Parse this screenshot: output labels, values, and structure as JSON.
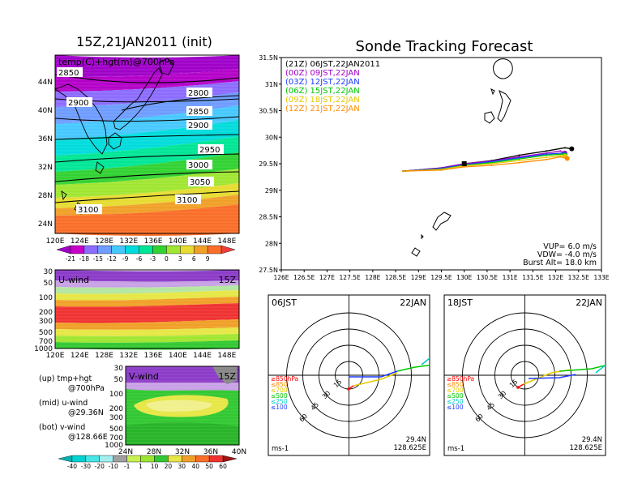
{
  "left": {
    "title": "15Z,21JAN2011 (init)",
    "top_panel": {
      "label": "temp(C)+hgt(m)@700hPa",
      "lat_ticks": [
        "44N",
        "40N",
        "36N",
        "32N",
        "28N",
        "24N"
      ],
      "lon_ticks": [
        "120E",
        "124E",
        "128E",
        "132E",
        "136E",
        "140E",
        "144E",
        "148E"
      ],
      "contours": [
        "2800",
        "2850",
        "2900",
        "2900",
        "2950",
        "3000",
        "3050",
        "3100",
        "3100",
        "2850"
      ],
      "colorbar": [
        "-21",
        "-18",
        "-15",
        "-12",
        "-9",
        "-6",
        "-3",
        "0",
        "3",
        "6",
        "9"
      ],
      "colors": [
        "#a000c8",
        "#c800c8",
        "#8c6cff",
        "#6e9cff",
        "#46c8ff",
        "#00dcdc",
        "#00e696",
        "#32d232",
        "#a0e632",
        "#e6dc32",
        "#f0a028",
        "#fa6e28",
        "#f03c3c"
      ]
    },
    "mid_panel": {
      "label": "U-wind",
      "time": "15Z",
      "p_ticks": [
        "30",
        "50",
        "100",
        "200",
        "300",
        "500",
        "700",
        "1000"
      ],
      "lon_ticks": [
        "120E",
        "124E",
        "128E",
        "132E",
        "136E",
        "140E",
        "144E",
        "148E"
      ]
    },
    "bot_panel": {
      "label": "V-wind",
      "time": "15Z",
      "p_ticks": [
        "30",
        "50",
        "100",
        "200",
        "300",
        "500",
        "700",
        "1000"
      ],
      "lat_ticks": [
        "24N",
        "28N",
        "32N",
        "36N",
        "40N"
      ],
      "colorbar": [
        "-40",
        "-30",
        "-20",
        "-10",
        "-1",
        "1",
        "10",
        "20",
        "30",
        "40",
        "50",
        "60"
      ]
    },
    "notes": [
      {
        "a": "(up) tmp+hgt",
        "b": "@700hPa"
      },
      {
        "a": "(mid) u-wind",
        "b": "@29.36N"
      },
      {
        "a": "(bot) v-wind",
        "b": "@128.66E"
      }
    ]
  },
  "right": {
    "title": "Sonde Tracking Forecast",
    "lat_ticks": [
      "31.5N",
      "31N",
      "30.5N",
      "30N",
      "29.5N",
      "29N",
      "28.5N",
      "28N",
      "27.5N"
    ],
    "lon_ticks": [
      "126E",
      "126.5E",
      "127E",
      "127.5E",
      "128E",
      "128.5E",
      "129E",
      "129.5E",
      "130E",
      "130.5E",
      "131E",
      "131.5E",
      "132E",
      "132.5E",
      "133E"
    ],
    "legend": [
      {
        "text": "(21Z) 06JST,22JAN2011",
        "color": "#000000"
      },
      {
        "text": "(00Z) 09JST,22JAN",
        "color": "#a000c8"
      },
      {
        "text": "(03Z) 12JST,22JAN",
        "color": "#1e3cff"
      },
      {
        "text": "(06Z) 15JST,22JAN",
        "color": "#00c800"
      },
      {
        "text": "(09Z) 18JST,22JAN",
        "color": "#e6c800"
      },
      {
        "text": "(12Z) 21JST,22JAN",
        "color": "#ff8c00"
      }
    ],
    "params": [
      "VUP= 6.0 m/s",
      "VDW= -4.0 m/s",
      "Burst Alt= 18.0 km"
    ],
    "polars": [
      {
        "time": "06JST",
        "date": "22JAN",
        "lat": "29.4N",
        "lon": "128.625E",
        "unit": "ms-1"
      },
      {
        "time": "18JST",
        "date": "22JAN",
        "lat": "29.4N",
        "lon": "128.625E",
        "unit": "ms-1"
      }
    ],
    "ring_labels": [
      "15",
      "30",
      "45",
      "60"
    ],
    "pressure_legend": [
      {
        "text": "≥850hPa",
        "color": "#ff0000"
      },
      {
        "text": "≤850",
        "color": "#ff8c00"
      },
      {
        "text": "≤700",
        "color": "#e6c800"
      },
      {
        "text": "≤500",
        "color": "#00c800"
      },
      {
        "text": "≤250",
        "color": "#00c8c8"
      },
      {
        "text": "≤100",
        "color": "#1e3cff"
      }
    ]
  },
  "chart_data": [
    {
      "type": "heatmap",
      "title": "15Z,21JAN2011 (init)",
      "label": "temp(C)+hgt(m)@700hPa",
      "xlim": [
        120,
        150
      ],
      "ylim": [
        22,
        48
      ],
      "colorbar_levels": [
        -21,
        -18,
        -15,
        -12,
        -9,
        -6,
        -3,
        0,
        3,
        6,
        9
      ],
      "height_contours_m": [
        2800,
        2850,
        2900,
        2950,
        3000,
        3050,
        3100
      ]
    },
    {
      "type": "heatmap",
      "label": "U-wind",
      "time": "15Z",
      "xlim": [
        120,
        150
      ],
      "pressure_levels": [
        30,
        50,
        100,
        200,
        300,
        500,
        700,
        1000
      ]
    },
    {
      "type": "heatmap",
      "label": "V-wind",
      "time": "15Z",
      "xlim": [
        24,
        40
      ],
      "pressure_levels": [
        30,
        50,
        100,
        200,
        300,
        500,
        700,
        1000
      ],
      "colorbar_levels": [
        -40,
        -30,
        -20,
        -10,
        -1,
        1,
        10,
        20,
        30,
        40,
        50,
        60
      ]
    },
    {
      "type": "line",
      "title": "Sonde Tracking Forecast",
      "xlim": [
        126,
        133
      ],
      "ylim": [
        27.5,
        31.5
      ],
      "launch": {
        "lon": 128.66,
        "lat": 29.36
      },
      "series": [
        {
          "name": "(21Z) 06JST,22JAN2011",
          "points": [
            [
              128.66,
              29.36
            ],
            [
              129.5,
              29.42
            ],
            [
              130.0,
              29.5
            ],
            [
              130.6,
              29.56
            ],
            [
              131.2,
              29.66
            ],
            [
              131.8,
              29.74
            ],
            [
              132.2,
              29.8
            ],
            [
              132.35,
              29.78
            ]
          ]
        },
        {
          "name": "(00Z) 09JST,22JAN",
          "points": [
            [
              128.66,
              29.36
            ],
            [
              129.5,
              29.42
            ],
            [
              130.0,
              29.5
            ],
            [
              130.6,
              29.55
            ],
            [
              131.2,
              29.63
            ],
            [
              131.8,
              29.7
            ],
            [
              132.1,
              29.74
            ],
            [
              132.2,
              29.7
            ]
          ]
        },
        {
          "name": "(03Z) 12JST,22JAN",
          "points": [
            [
              128.66,
              29.36
            ],
            [
              129.5,
              29.41
            ],
            [
              130.0,
              29.48
            ],
            [
              130.6,
              29.54
            ],
            [
              131.2,
              29.61
            ],
            [
              131.8,
              29.68
            ],
            [
              132.15,
              29.7
            ],
            [
              132.2,
              29.67
            ]
          ]
        },
        {
          "name": "(06Z) 15JST,22JAN",
          "points": [
            [
              128.66,
              29.36
            ],
            [
              129.5,
              29.4
            ],
            [
              130.0,
              29.47
            ],
            [
              130.6,
              29.52
            ],
            [
              131.2,
              29.59
            ],
            [
              131.8,
              29.66
            ],
            [
              132.15,
              29.68
            ],
            [
              132.2,
              29.66
            ]
          ]
        },
        {
          "name": "(09Z) 18JST,22JAN",
          "points": [
            [
              128.66,
              29.36
            ],
            [
              129.5,
              29.39
            ],
            [
              130.0,
              29.46
            ],
            [
              130.6,
              29.5
            ],
            [
              131.2,
              29.56
            ],
            [
              131.8,
              29.62
            ],
            [
              132.1,
              29.65
            ],
            [
              132.2,
              29.64
            ]
          ]
        },
        {
          "name": "(12Z) 21JST,22JAN",
          "points": [
            [
              128.66,
              29.36
            ],
            [
              129.5,
              29.38
            ],
            [
              130.0,
              29.44
            ],
            [
              130.6,
              29.47
            ],
            [
              131.2,
              29.52
            ],
            [
              131.8,
              29.58
            ],
            [
              132.1,
              29.63
            ],
            [
              132.25,
              29.6
            ]
          ]
        }
      ]
    }
  ]
}
